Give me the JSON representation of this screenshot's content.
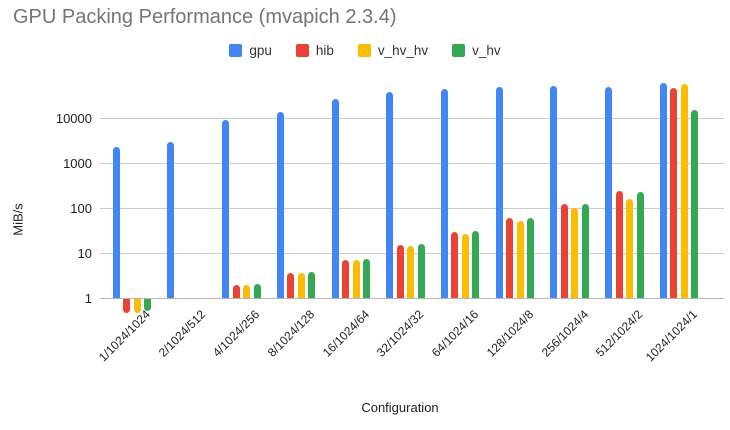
{
  "title": "GPU Packing Performance (mvapich 2.3.4)",
  "chart_data": {
    "type": "bar",
    "title": "GPU Packing Performance (mvapich 2.3.4)",
    "xlabel": "Configuration",
    "ylabel": "MiB/s",
    "yscale": "log",
    "ylim": [
      1,
      100000
    ],
    "yticks": [
      1,
      10,
      100,
      1000,
      10000
    ],
    "grid": true,
    "legend_position": "top",
    "categories": [
      "1/1024/1024",
      "2/1024/512",
      "4/1024/256",
      "8/1024/128",
      "16/1024/64",
      "32/1024/32",
      "64/1024/16",
      "128/1024/8",
      "256/1024/4",
      "512/1024/2",
      "1024/1024/1"
    ],
    "series": [
      {
        "name": "gpu",
        "color": "#4285F4",
        "values": [
          2300,
          2900,
          8800,
          13500,
          26000,
          38000,
          45000,
          48000,
          52000,
          50000,
          60000
        ]
      },
      {
        "name": "hib",
        "color": "#EA4335",
        "values": [
          0.5,
          null,
          1.9,
          3.6,
          7.1,
          15,
          29,
          59,
          125,
          240,
          47000
        ]
      },
      {
        "name": "v_hv_hv",
        "color": "#FBBC04",
        "values": [
          0.5,
          null,
          1.9,
          3.6,
          7.1,
          14,
          27,
          51,
          100,
          160,
          57000
        ]
      },
      {
        "name": "v_hv",
        "color": "#34A853",
        "values": [
          0.55,
          null,
          2.0,
          3.7,
          7.4,
          16,
          31,
          61,
          125,
          230,
          15000
        ]
      }
    ]
  },
  "colors": {
    "title": "#757575",
    "axis_text": "#1f1f1f",
    "gridline": "#cccccc",
    "baseline": "#b7b7b7",
    "background": "#ffffff"
  }
}
